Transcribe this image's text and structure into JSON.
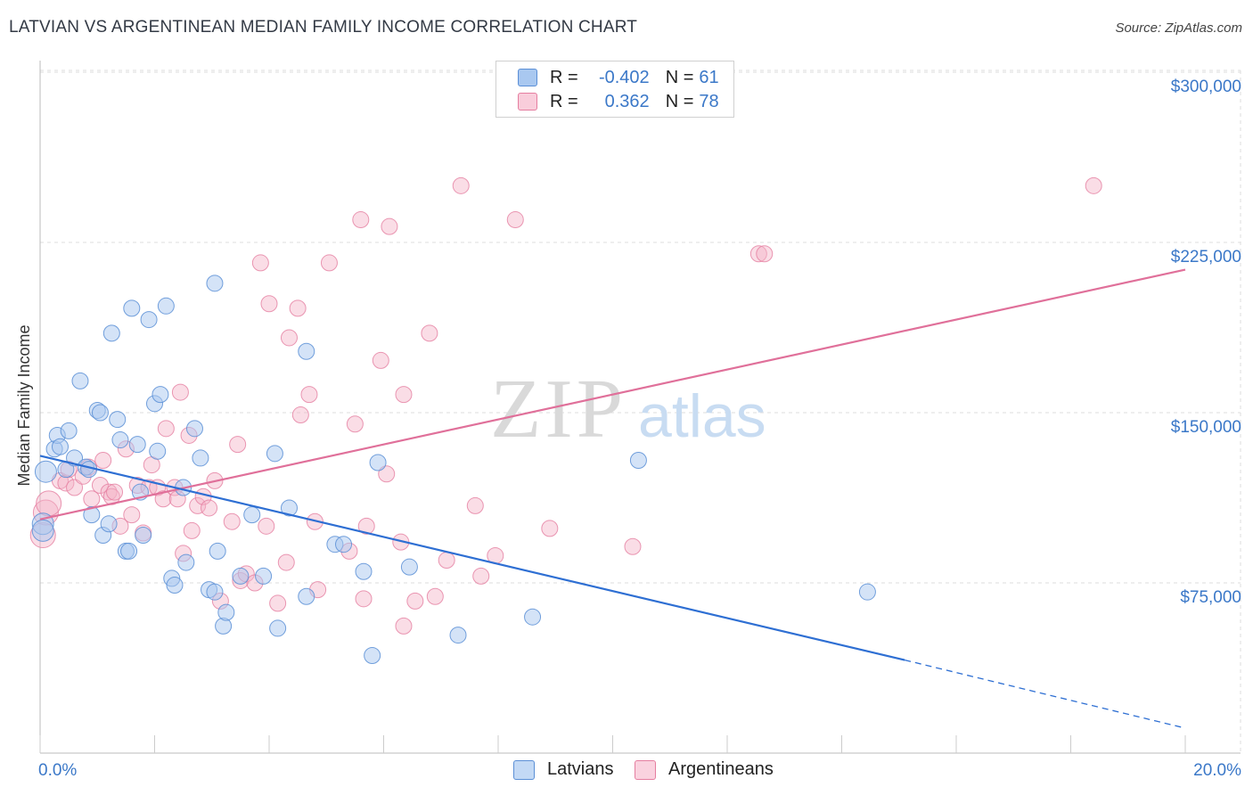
{
  "title": "LATVIAN VS ARGENTINEAN MEDIAN FAMILY INCOME CORRELATION CHART",
  "source": "Source: ZipAtlas.com",
  "watermark": {
    "zip": "ZIP",
    "atlas": "atlas"
  },
  "legend_top": {
    "rows": [
      {
        "r_label": "R = ",
        "r_value": "-0.402",
        "n_label": "N = ",
        "n_value": "61",
        "color": "#a9c8f0"
      },
      {
        "r_label": "R = ",
        "r_value": "0.362",
        "n_label": "N = ",
        "n_value": "78",
        "color": "#f5b3c8"
      }
    ]
  },
  "legend_bottom": [
    {
      "label": "Latvians",
      "color": "#a9c8f0"
    },
    {
      "label": "Argentineans",
      "color": "#f5b3c8"
    }
  ],
  "colors": {
    "blue_fill": "#a9c8f0",
    "blue_stroke": "#5b8fd6",
    "blue_line": "#2e6fd3",
    "pink_fill": "#f5b3c8",
    "pink_stroke": "#e57ea0",
    "pink_line": "#e0709a",
    "grid": "#dddddd",
    "tick_text": "#3b78c8"
  },
  "chart_data": {
    "type": "scatter",
    "title": "LATVIAN VS ARGENTINEAN MEDIAN FAMILY INCOME CORRELATION CHART",
    "xlabel": "",
    "ylabel": "Median Family Income",
    "x_unit": "%",
    "xlim": [
      0,
      20
    ],
    "ylim": [
      0,
      315000
    ],
    "x_tick_labels": [
      "0.0%",
      "20.0%"
    ],
    "y_ticks": [
      75000,
      150000,
      225000,
      300000
    ],
    "y_tick_labels": [
      "$75,000",
      "$150,000",
      "$225,000",
      "$300,000"
    ],
    "grid": true,
    "legend": "top-center",
    "series": [
      {
        "name": "Latvians",
        "r": -0.402,
        "n": 61,
        "trend": {
          "x0": 0,
          "y0": 131000,
          "x1": 15.1,
          "y1": 41000,
          "dash_to_x": 20,
          "dash_to_y": 11000
        },
        "points": [
          [
            0.1,
            124000
          ],
          [
            0.25,
            134000
          ],
          [
            0.3,
            140000
          ],
          [
            0.35,
            135000
          ],
          [
            0.45,
            125000
          ],
          [
            0.5,
            142000
          ],
          [
            0.6,
            130000
          ],
          [
            0.7,
            164000
          ],
          [
            0.8,
            126000
          ],
          [
            0.85,
            125000
          ],
          [
            0.9,
            105000
          ],
          [
            1.0,
            151000
          ],
          [
            1.05,
            150000
          ],
          [
            1.1,
            96000
          ],
          [
            1.2,
            101000
          ],
          [
            1.25,
            185000
          ],
          [
            1.35,
            147000
          ],
          [
            1.4,
            138000
          ],
          [
            1.5,
            89000
          ],
          [
            1.55,
            89000
          ],
          [
            1.6,
            196000
          ],
          [
            1.7,
            136000
          ],
          [
            1.75,
            115000
          ],
          [
            1.8,
            96000
          ],
          [
            1.9,
            191000
          ],
          [
            2.0,
            154000
          ],
          [
            2.05,
            133000
          ],
          [
            2.1,
            158000
          ],
          [
            2.2,
            197000
          ],
          [
            2.3,
            77000
          ],
          [
            2.35,
            74000
          ],
          [
            2.5,
            117000
          ],
          [
            2.55,
            84000
          ],
          [
            2.7,
            143000
          ],
          [
            2.8,
            130000
          ],
          [
            2.95,
            72000
          ],
          [
            3.05,
            71000
          ],
          [
            3.05,
            207000
          ],
          [
            3.1,
            89000
          ],
          [
            3.2,
            56000
          ],
          [
            3.25,
            62000
          ],
          [
            3.5,
            78000
          ],
          [
            3.7,
            105000
          ],
          [
            3.9,
            78000
          ],
          [
            4.1,
            132000
          ],
          [
            4.15,
            55000
          ],
          [
            4.35,
            108000
          ],
          [
            4.65,
            69000
          ],
          [
            4.65,
            177000
          ],
          [
            5.15,
            92000
          ],
          [
            5.3,
            92000
          ],
          [
            5.65,
            80000
          ],
          [
            5.8,
            43000
          ],
          [
            5.9,
            128000
          ],
          [
            6.45,
            82000
          ],
          [
            7.3,
            52000
          ],
          [
            8.6,
            60000
          ],
          [
            10.45,
            129000
          ],
          [
            14.45,
            71000
          ],
          [
            0.05,
            101000
          ],
          [
            0.05,
            98000
          ]
        ]
      },
      {
        "name": "Argentineans",
        "r": 0.362,
        "n": 78,
        "trend": {
          "x0": 0,
          "y0": 103000,
          "x1": 20,
          "y1": 213000
        },
        "points": [
          [
            0.05,
            96000
          ],
          [
            0.1,
            106000
          ],
          [
            0.15,
            110000
          ],
          [
            0.35,
            120000
          ],
          [
            0.45,
            119000
          ],
          [
            0.5,
            125000
          ],
          [
            0.6,
            117000
          ],
          [
            0.75,
            122000
          ],
          [
            0.85,
            126000
          ],
          [
            0.9,
            112000
          ],
          [
            1.05,
            118000
          ],
          [
            1.1,
            129000
          ],
          [
            1.2,
            115000
          ],
          [
            1.25,
            113000
          ],
          [
            1.3,
            115000
          ],
          [
            1.4,
            100000
          ],
          [
            1.5,
            134000
          ],
          [
            1.6,
            105000
          ],
          [
            1.7,
            118000
          ],
          [
            1.8,
            97000
          ],
          [
            1.9,
            117000
          ],
          [
            1.95,
            127000
          ],
          [
            2.05,
            117000
          ],
          [
            2.15,
            112000
          ],
          [
            2.2,
            143000
          ],
          [
            2.35,
            117000
          ],
          [
            2.4,
            112000
          ],
          [
            2.45,
            159000
          ],
          [
            2.5,
            88000
          ],
          [
            2.6,
            140000
          ],
          [
            2.65,
            98000
          ],
          [
            2.75,
            109000
          ],
          [
            2.85,
            113000
          ],
          [
            2.95,
            108000
          ],
          [
            3.05,
            120000
          ],
          [
            3.15,
            67000
          ],
          [
            3.35,
            102000
          ],
          [
            3.45,
            136000
          ],
          [
            3.5,
            76000
          ],
          [
            3.6,
            79000
          ],
          [
            3.75,
            75000
          ],
          [
            3.85,
            216000
          ],
          [
            3.95,
            100000
          ],
          [
            4.0,
            198000
          ],
          [
            4.15,
            66000
          ],
          [
            4.3,
            84000
          ],
          [
            4.35,
            183000
          ],
          [
            4.5,
            196000
          ],
          [
            4.55,
            149000
          ],
          [
            4.7,
            158000
          ],
          [
            4.8,
            102000
          ],
          [
            4.85,
            72000
          ],
          [
            5.05,
            216000
          ],
          [
            5.4,
            89000
          ],
          [
            5.5,
            145000
          ],
          [
            5.6,
            235000
          ],
          [
            5.65,
            68000
          ],
          [
            5.7,
            100000
          ],
          [
            5.95,
            173000
          ],
          [
            6.05,
            123000
          ],
          [
            6.1,
            232000
          ],
          [
            6.3,
            93000
          ],
          [
            6.35,
            56000
          ],
          [
            6.55,
            67000
          ],
          [
            6.8,
            185000
          ],
          [
            6.9,
            69000
          ],
          [
            7.1,
            85000
          ],
          [
            7.35,
            250000
          ],
          [
            7.6,
            109000
          ],
          [
            7.7,
            78000
          ],
          [
            7.95,
            87000
          ],
          [
            8.3,
            235000
          ],
          [
            8.9,
            99000
          ],
          [
            10.35,
            91000
          ],
          [
            12.55,
            220000
          ],
          [
            12.65,
            220000
          ],
          [
            18.4,
            250000
          ],
          [
            6.35,
            158000
          ]
        ]
      }
    ]
  }
}
